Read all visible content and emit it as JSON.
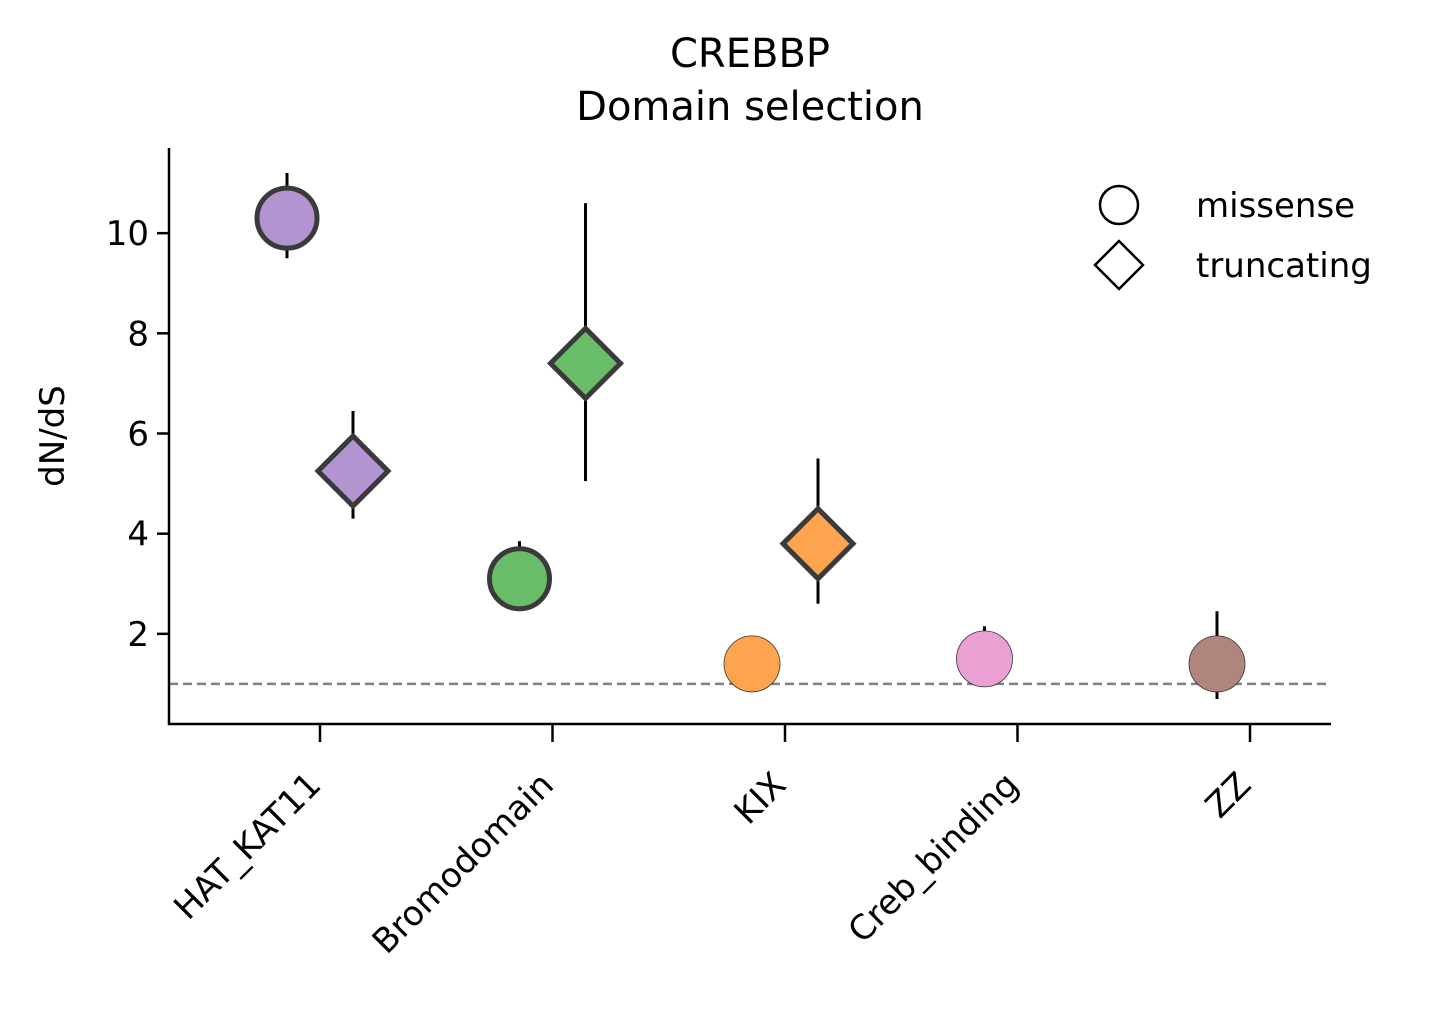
{
  "chart_data": {
    "type": "scatter",
    "title": "CREBBP\nDomain selection",
    "title_lines": [
      "CREBBP",
      "Domain selection"
    ],
    "xlabel": "",
    "ylabel": "dN/dS",
    "categories": [
      "HAT_KAT11",
      "Bromodomain",
      "KIX",
      "Creb_binding",
      "ZZ"
    ],
    "yticks": [
      2,
      4,
      6,
      8,
      10
    ],
    "ylim": [
      0.2,
      11.7
    ],
    "reference_line": 1.0,
    "legend_position": "top-right",
    "series": [
      {
        "name": "missense",
        "marker": "circle",
        "values": [
          10.3,
          3.1,
          1.4,
          1.5,
          1.4
        ],
        "err_low": [
          9.5,
          2.8,
          null,
          1.45,
          0.7
        ],
        "err_high": [
          11.2,
          3.85,
          null,
          2.15,
          2.45
        ],
        "significant": [
          true,
          true,
          false,
          false,
          false
        ]
      },
      {
        "name": "truncating",
        "marker": "diamond",
        "values": [
          5.25,
          7.4,
          3.8,
          null,
          null
        ],
        "err_low": [
          4.3,
          5.05,
          2.6,
          null,
          null
        ],
        "err_high": [
          6.45,
          10.6,
          5.5,
          null,
          null
        ],
        "significant": [
          true,
          true,
          true,
          false,
          false
        ]
      }
    ],
    "colors": [
      "#b294d0",
      "#6abd68",
      "#fea451",
      "#eb9fd3",
      "#af857e"
    ],
    "reference_line_color": "#808080"
  }
}
